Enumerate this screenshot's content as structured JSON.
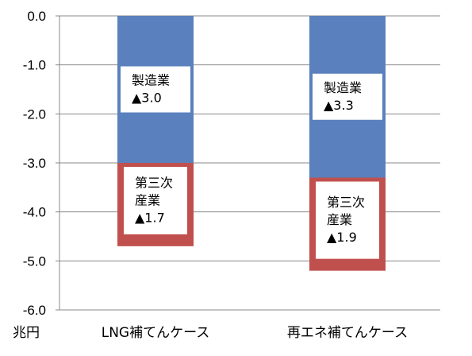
{
  "chart_data": {
    "type": "bar",
    "stacked": true,
    "categories": [
      "LNG補てんケース",
      "再エネ補てんケース"
    ],
    "series": [
      {
        "key": "manufacturing",
        "values": [
          -3.0,
          -3.3
        ],
        "labels": [
          [
            "製造業",
            "▲3.0"
          ],
          [
            "製造業",
            "▲3.3"
          ]
        ],
        "color": "#5a80bd"
      },
      {
        "key": "tertiary",
        "values": [
          -1.7,
          -1.9
        ],
        "labels": [
          [
            "第三次",
            "産業",
            "▲1.7"
          ],
          [
            "第三次",
            "産業",
            "▲1.9"
          ]
        ],
        "color": "#c0504d"
      }
    ],
    "ylim": [
      -6.0,
      0.0
    ],
    "yticks": [
      "0.0",
      "-1.0",
      "-2.0",
      "-3.0",
      "-4.0",
      "-5.0",
      "-6.0"
    ],
    "ytick_values": [
      0,
      -1,
      -2,
      -3,
      -4,
      -5,
      -6
    ],
    "unit_label": "兆円",
    "grid": true,
    "segment_fill": {
      "tertiary": "#ffffff"
    }
  }
}
